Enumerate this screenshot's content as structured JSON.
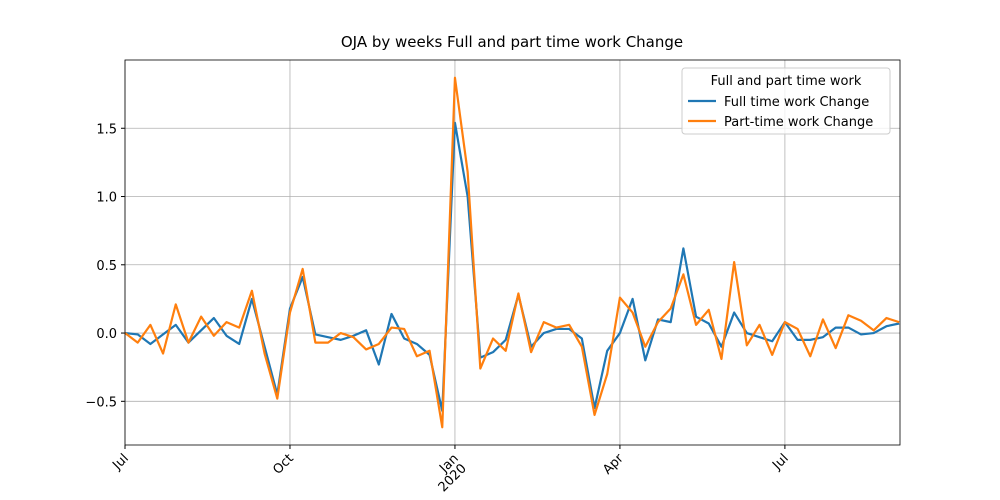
{
  "chart_data": {
    "type": "line",
    "title": "OJA by weeks Full and part time work Change",
    "legend_title": "Full and part time work",
    "legend": "upper right",
    "grid": true,
    "xlim": [
      0,
      61.07
    ],
    "xticks": [
      {
        "value": 0,
        "label": "Jul"
      },
      {
        "value": 13,
        "label": "Oct"
      },
      {
        "value": 26,
        "label": "Jan",
        "year": "2020"
      },
      {
        "value": 39,
        "label": "Apr"
      },
      {
        "value": 52,
        "label": "Jul"
      }
    ],
    "ylim": [
      -0.82,
      2.0
    ],
    "yticks": [
      {
        "value": -0.5,
        "label": "−0.5"
      },
      {
        "value": 0,
        "label": "0.0"
      },
      {
        "value": 0.5,
        "label": "0.5"
      },
      {
        "value": 1,
        "label": "1.0"
      },
      {
        "value": 1.5,
        "label": "1.5"
      }
    ],
    "series": [
      {
        "name": "Full time work Change",
        "color": "#1f77b4",
        "values": [
          0,
          -0.01,
          -0.08,
          -0.01,
          0.06,
          -0.07,
          0.02,
          0.11,
          -0.02,
          -0.08,
          0.25,
          -0.1,
          -0.45,
          0.18,
          0.41,
          -0.01,
          -0.03,
          -0.05,
          -0.02,
          0.02,
          -0.23,
          0.14,
          -0.04,
          -0.08,
          -0.16,
          -0.57,
          1.54,
          1.0,
          -0.18,
          -0.14,
          -0.05,
          0.28,
          -0.1,
          0,
          0.03,
          0.03,
          -0.04,
          -0.55,
          -0.13,
          0,
          0.25,
          -0.2,
          0.1,
          0.08,
          0.62,
          0.12,
          0.07,
          -0.1,
          0.15,
          0,
          -0.03,
          -0.06,
          0.08,
          -0.05,
          -0.05,
          -0.03,
          0.04,
          0.04,
          -0.01,
          0,
          0.05,
          0.07
        ]
      },
      {
        "name": "Part-time work Change",
        "color": "#ff7f0e",
        "values": [
          0,
          -0.07,
          0.06,
          -0.15,
          0.21,
          -0.07,
          0.12,
          -0.02,
          0.08,
          0.04,
          0.31,
          -0.15,
          -0.48,
          0.15,
          0.47,
          -0.07,
          -0.07,
          0,
          -0.03,
          -0.12,
          -0.08,
          0.04,
          0.03,
          -0.17,
          -0.13,
          -0.69,
          1.87,
          1.18,
          -0.26,
          -0.04,
          -0.13,
          0.29,
          -0.14,
          0.08,
          0.04,
          0.06,
          -0.1,
          -0.6,
          -0.3,
          0.26,
          0.15,
          -0.1,
          0.08,
          0.18,
          0.43,
          0.06,
          0.17,
          -0.19,
          0.52,
          -0.09,
          0.06,
          -0.16,
          0.08,
          0.03,
          -0.17,
          0.1,
          -0.11,
          0.13,
          0.09,
          0.02,
          0.11,
          0.08
        ]
      }
    ]
  }
}
